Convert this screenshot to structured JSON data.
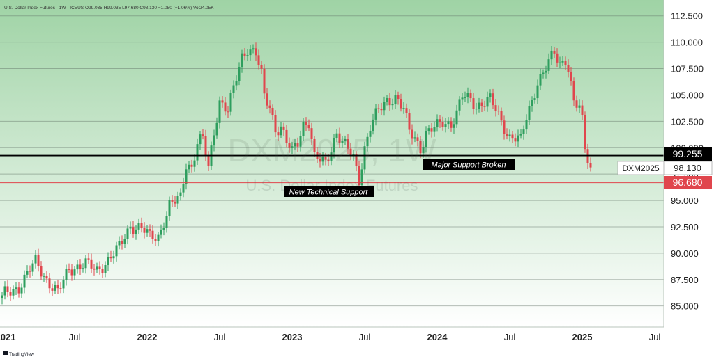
{
  "header": {
    "info": "U.S. Dollar Index Futures · 1W · ICEUS  O99.035  H99.035  L97.680  C98.130  −1.050 (−1.06%)  Vol24.05K"
  },
  "watermark": {
    "symbol": "DXM2025, 1W",
    "name": "U.S. Dollar Index Futures"
  },
  "footer": {
    "brand": "TradingView"
  },
  "colors": {
    "up": "#2e9e5e",
    "down": "#e0464d",
    "support_line": "#000000",
    "tech_line": "#e0464d",
    "bg_top": "#9fd3a5",
    "bg_bottom": "#ffffff"
  },
  "annotations": {
    "major_support": "Major Support Broken",
    "new_support": "New Technical Support"
  },
  "price_labels": {
    "support": "99.255",
    "current": "98.130",
    "tech": "96.680",
    "symbol": "DXM2025"
  },
  "chart_data": {
    "type": "candlestick",
    "y_ticks": [
      "112.500",
      "110.000",
      "107.500",
      "105.000",
      "102.500",
      "100.000",
      "97.500",
      "95.000",
      "92.500",
      "90.000",
      "87.500",
      "85.000"
    ],
    "y_tick_values": [
      112.5,
      110,
      107.5,
      105,
      102.5,
      100,
      97.5,
      95,
      92.5,
      90,
      87.5,
      85
    ],
    "ylim": [
      83.0,
      114.0
    ],
    "x_ticks": [
      {
        "label": "2021",
        "week": 0,
        "bold": true
      },
      {
        "label": "Jul",
        "week": 26,
        "bold": false
      },
      {
        "label": "2022",
        "week": 52,
        "bold": true
      },
      {
        "label": "Jul",
        "week": 78,
        "bold": false
      },
      {
        "label": "2023",
        "week": 104,
        "bold": true
      },
      {
        "label": "Jul",
        "week": 130,
        "bold": false
      },
      {
        "label": "2024",
        "week": 156,
        "bold": true
      },
      {
        "label": "Jul",
        "week": 182,
        "bold": false
      },
      {
        "label": "2025",
        "week": 208,
        "bold": true
      },
      {
        "label": "Jul",
        "week": 234,
        "bold": false
      }
    ],
    "support_level": 99.255,
    "technical_support_level": 96.68,
    "current_price": 98.13,
    "anchors": [
      {
        "week": 0,
        "close": 86.0
      },
      {
        "week": 6,
        "close": 86.8
      },
      {
        "week": 12,
        "close": 89.2
      },
      {
        "week": 16,
        "close": 87.5
      },
      {
        "week": 20,
        "close": 86.2
      },
      {
        "week": 24,
        "close": 88.5
      },
      {
        "week": 30,
        "close": 89.0
      },
      {
        "week": 34,
        "close": 88.3
      },
      {
        "week": 42,
        "close": 90.5
      },
      {
        "week": 46,
        "close": 92.6
      },
      {
        "week": 50,
        "close": 92.4
      },
      {
        "week": 53,
        "close": 91.5
      },
      {
        "week": 56,
        "close": 91.6
      },
      {
        "week": 60,
        "close": 94.5
      },
      {
        "week": 64,
        "close": 95.2
      },
      {
        "week": 66,
        "close": 98.5
      },
      {
        "week": 68,
        "close": 98.2
      },
      {
        "week": 70,
        "close": 100.5
      },
      {
        "week": 72,
        "close": 100.8
      },
      {
        "week": 74,
        "close": 98.0
      },
      {
        "week": 76,
        "close": 101.5
      },
      {
        "week": 78,
        "close": 104.5
      },
      {
        "week": 81,
        "close": 103.5
      },
      {
        "week": 83,
        "close": 105.5
      },
      {
        "week": 86,
        "close": 108.6
      },
      {
        "week": 88,
        "close": 109.5
      },
      {
        "week": 91,
        "close": 109.0
      },
      {
        "week": 93,
        "close": 106.8
      },
      {
        "week": 94,
        "close": 104.7
      },
      {
        "week": 96,
        "close": 103.9
      },
      {
        "week": 98,
        "close": 101.8
      },
      {
        "week": 100,
        "close": 102.0
      },
      {
        "week": 102,
        "close": 100.5
      },
      {
        "week": 104,
        "close": 99.5
      },
      {
        "week": 106,
        "close": 100.5
      },
      {
        "week": 108,
        "close": 102.3
      },
      {
        "week": 110,
        "close": 102.5
      },
      {
        "week": 112,
        "close": 99.0
      },
      {
        "week": 116,
        "close": 98.5
      },
      {
        "week": 118,
        "close": 100.0
      },
      {
        "week": 120,
        "close": 101.5
      },
      {
        "week": 122,
        "close": 100.5
      },
      {
        "week": 126,
        "close": 99.0
      },
      {
        "week": 128,
        "close": 97.0
      },
      {
        "week": 130,
        "close": 100.0
      },
      {
        "week": 132,
        "close": 102.0
      },
      {
        "week": 135,
        "close": 103.5
      },
      {
        "week": 138,
        "close": 104.5
      },
      {
        "week": 141,
        "close": 104.8
      },
      {
        "week": 144,
        "close": 103.6
      },
      {
        "week": 146,
        "close": 101.5
      },
      {
        "week": 148,
        "close": 101.0
      },
      {
        "week": 150,
        "close": 100.0
      },
      {
        "week": 152,
        "close": 101.3
      },
      {
        "week": 155,
        "close": 101.8
      },
      {
        "week": 158,
        "close": 102.5
      },
      {
        "week": 161,
        "close": 102.3
      },
      {
        "week": 163,
        "close": 103.2
      },
      {
        "week": 165,
        "close": 104.8
      },
      {
        "week": 168,
        "close": 104.6
      },
      {
        "week": 170,
        "close": 104.0
      },
      {
        "week": 173,
        "close": 104.3
      },
      {
        "week": 175,
        "close": 104.5
      },
      {
        "week": 177,
        "close": 103.6
      },
      {
        "week": 180,
        "close": 102.0
      },
      {
        "week": 182,
        "close": 101.0
      },
      {
        "week": 184,
        "close": 100.9
      },
      {
        "week": 186,
        "close": 100.6
      },
      {
        "week": 188,
        "close": 102.9
      },
      {
        "week": 190,
        "close": 104.5
      },
      {
        "week": 192,
        "close": 106.3
      },
      {
        "week": 194,
        "close": 107.0
      },
      {
        "week": 196,
        "close": 108.0
      },
      {
        "week": 198,
        "close": 109.0
      },
      {
        "week": 200,
        "close": 108.0
      },
      {
        "week": 202,
        "close": 108.5
      },
      {
        "week": 203,
        "close": 107.5
      },
      {
        "week": 205,
        "close": 104.2
      },
      {
        "week": 207,
        "close": 103.7
      },
      {
        "week": 208,
        "close": 102.5
      },
      {
        "week": 209,
        "close": 100.0
      },
      {
        "week": 210,
        "close": 99.1
      },
      {
        "week": 211,
        "close": 98.13
      }
    ]
  }
}
